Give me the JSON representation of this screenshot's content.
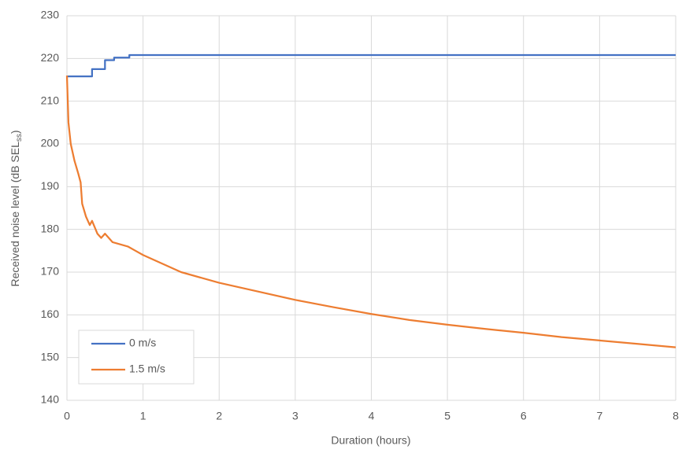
{
  "chart_data": {
    "type": "line",
    "x_label": "Duration (hours)",
    "y_label": "Received noise level (dB SEL",
    "y_label_sub": "ss",
    "y_label_end": ")",
    "xlim": [
      0,
      8
    ],
    "xticks": [
      0,
      1,
      2,
      3,
      4,
      5,
      6,
      7,
      8
    ],
    "ylim": [
      140,
      230
    ],
    "yticks": [
      140,
      150,
      160,
      170,
      180,
      190,
      200,
      210,
      220,
      230
    ],
    "grid": true,
    "legend": "lower left",
    "series": [
      {
        "name": "0 m/s",
        "color": "#4472c4",
        "x": [
          0,
          0.33,
          0.33,
          0.5,
          0.5,
          0.62,
          0.62,
          0.82,
          0.82,
          8
        ],
        "values": [
          215.8,
          215.8,
          217.5,
          217.5,
          219.6,
          219.6,
          220.2,
          220.2,
          220.8,
          220.8
        ]
      },
      {
        "name": "1.5 m/s",
        "color": "#ed7d31",
        "x": [
          0,
          0.02,
          0.05,
          0.1,
          0.15,
          0.18,
          0.2,
          0.25,
          0.3,
          0.33,
          0.4,
          0.45,
          0.5,
          0.6,
          0.7,
          0.8,
          0.9,
          1,
          1.25,
          1.5,
          2,
          2.5,
          3,
          3.5,
          4,
          4.5,
          5,
          5.5,
          6,
          6.5,
          7,
          7.5,
          8
        ],
        "values": [
          216,
          205,
          200,
          196,
          193,
          191,
          186,
          183,
          181,
          182,
          179,
          178,
          179,
          177,
          176.5,
          176,
          175,
          174,
          172,
          170,
          167.5,
          165.5,
          163.5,
          161.8,
          160.2,
          158.8,
          157.7,
          156.7,
          155.8,
          154.8,
          154,
          153.2,
          152.4
        ]
      }
    ]
  }
}
